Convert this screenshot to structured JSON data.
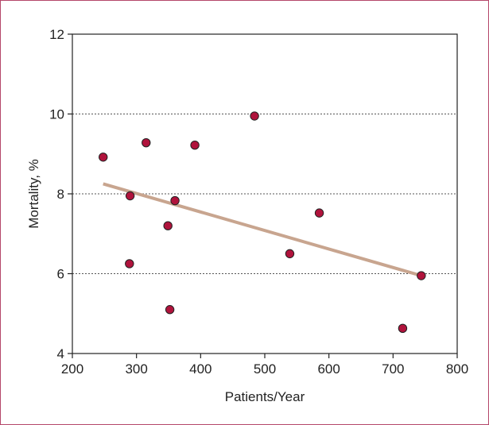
{
  "chart_data": {
    "type": "scatter",
    "title": "",
    "xlabel": "Patients/Year",
    "ylabel": "Mortality, %",
    "xlim": [
      200,
      800
    ],
    "ylim": [
      4,
      12
    ],
    "xticks": [
      "200",
      "300",
      "400",
      "500",
      "600",
      "700",
      "800"
    ],
    "yticks": [
      "4",
      "6",
      "8",
      "10",
      "12"
    ],
    "grid": "horizontal dotted at 6, 8, 10",
    "points": [
      {
        "x": 248,
        "y": 8.92
      },
      {
        "x": 290,
        "y": 7.95
      },
      {
        "x": 289,
        "y": 6.25
      },
      {
        "x": 315,
        "y": 9.28
      },
      {
        "x": 349,
        "y": 7.2
      },
      {
        "x": 352,
        "y": 5.1
      },
      {
        "x": 360,
        "y": 7.83
      },
      {
        "x": 391,
        "y": 9.22
      },
      {
        "x": 484,
        "y": 9.95
      },
      {
        "x": 539,
        "y": 6.5
      },
      {
        "x": 585,
        "y": 7.52
      },
      {
        "x": 715,
        "y": 4.63
      },
      {
        "x": 744,
        "y": 5.95
      }
    ],
    "trendline": {
      "x": [
        248,
        744
      ],
      "y": [
        8.25,
        5.95
      ]
    },
    "colors": {
      "points": "#b0133c",
      "trendline": "#c8a58f",
      "grid": "#555555",
      "frame": "#b5476a"
    }
  }
}
